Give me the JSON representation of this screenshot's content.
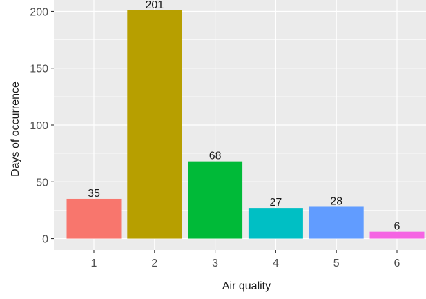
{
  "chart_data": {
    "type": "bar",
    "title": "",
    "xlabel": "Air quality",
    "ylabel": "Days of occurrence",
    "categories": [
      "1",
      "2",
      "3",
      "4",
      "5",
      "6"
    ],
    "values": [
      35,
      201,
      68,
      27,
      28,
      6
    ],
    "data_labels": [
      "35",
      "201",
      "68",
      "27",
      "28",
      "6"
    ],
    "colors": [
      "#F8766D",
      "#B79F00",
      "#00BA38",
      "#00BFC4",
      "#619CFF",
      "#F564E3"
    ],
    "yticks": [
      0,
      50,
      100,
      150,
      200
    ],
    "ytick_labels": [
      "0",
      "50",
      "100",
      "150",
      "200"
    ],
    "ylim": [
      -10,
      210
    ],
    "grid": true,
    "legend": "none",
    "panel_background": "#EBEBEB",
    "grid_color": "#FFFFFF"
  }
}
